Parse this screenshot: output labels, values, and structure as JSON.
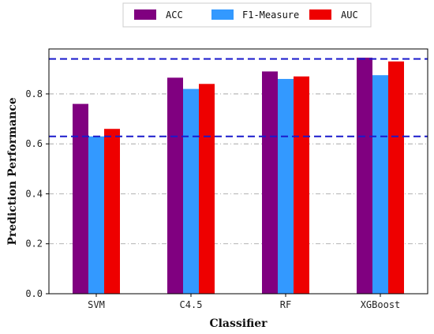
{
  "chart_data": {
    "type": "bar",
    "categories": [
      "SVM",
      "C4.5",
      "RF",
      "XGBoost"
    ],
    "series": [
      {
        "name": "ACC",
        "color": "#800080",
        "values": [
          0.76,
          0.865,
          0.89,
          0.945
        ]
      },
      {
        "name": "F1-Measure",
        "color": "#3399ff",
        "values": [
          0.63,
          0.82,
          0.86,
          0.875
        ]
      },
      {
        "name": "AUC",
        "color": "#ee0000",
        "values": [
          0.66,
          0.84,
          0.87,
          0.93
        ]
      }
    ],
    "xlabel": "Classifier",
    "ylabel": "Prediction Performance",
    "ylim": [
      0,
      0.98
    ],
    "yticks": [
      0.0,
      0.2,
      0.4,
      0.6,
      0.8
    ],
    "ytick_labels": [
      "0.0",
      "0.2",
      "0.4",
      "0.6",
      "0.8"
    ],
    "xtick_labels": [
      "SVM",
      "C4.5",
      "RF",
      "XGBoost"
    ],
    "reference_lines": [
      0.94,
      0.63
    ],
    "reference_line_color": "#1a1acc",
    "grid": "horizontal dash-dot",
    "legend_position": "top-center"
  }
}
